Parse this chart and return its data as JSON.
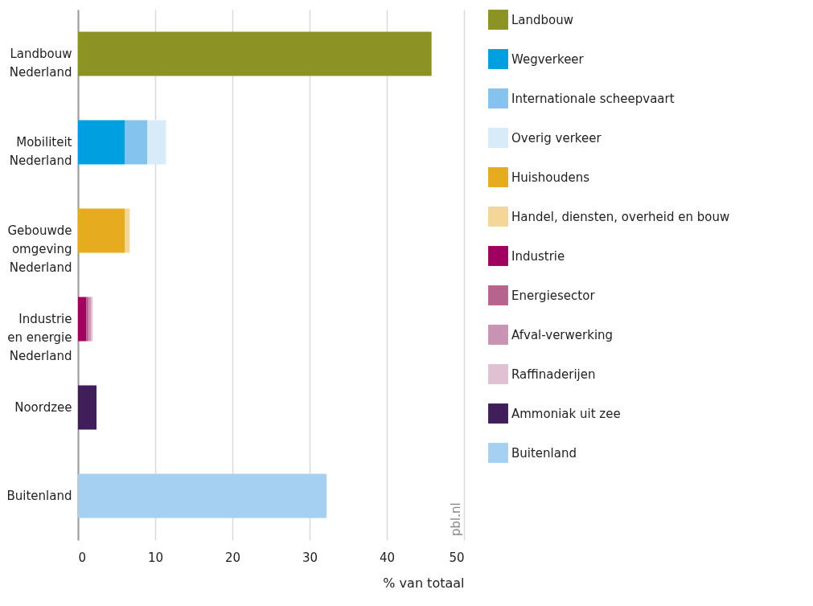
{
  "chart_data": {
    "type": "bar",
    "orientation": "horizontal",
    "stacked": true,
    "categories": [
      "Landbouw\nNederland",
      "Mobiliteit\nNederland",
      "Gebouwde\nomgeving\nNederland",
      "Industrie\nen energie\nNederland",
      "Noordzee",
      "Buitenland"
    ],
    "series": [
      {
        "name": "Landbouw",
        "color": "#8c9224",
        "values": [
          45.8,
          null,
          null,
          null,
          null,
          null
        ]
      },
      {
        "name": "Wegverkeer",
        "color": "#009fe0",
        "values": [
          null,
          6.1,
          null,
          null,
          null,
          null
        ]
      },
      {
        "name": "Internationale scheepvaart",
        "color": "#84c3ee",
        "values": [
          null,
          2.9,
          null,
          null,
          null,
          null
        ]
      },
      {
        "name": "Overig verkeer",
        "color": "#d7ebf8",
        "values": [
          null,
          2.4,
          null,
          null,
          null,
          null
        ]
      },
      {
        "name": "Huishoudens",
        "color": "#e6ab1e",
        "values": [
          null,
          null,
          6.1,
          null,
          null,
          null
        ]
      },
      {
        "name": "Handel, diensten, overheid en bouw",
        "color": "#f3d698",
        "values": [
          null,
          null,
          0.6,
          null,
          null,
          null
        ]
      },
      {
        "name": "Industrie",
        "color": "#a0005f",
        "values": [
          null,
          null,
          null,
          1.1,
          null,
          null
        ]
      },
      {
        "name": "Energiesector",
        "color": "#b6648e",
        "values": [
          null,
          null,
          null,
          0.3,
          null,
          null
        ]
      },
      {
        "name": "Afval-verwerking",
        "color": "#c993b4",
        "values": [
          null,
          null,
          null,
          0.3,
          null,
          null
        ]
      },
      {
        "name": "Raffinaderijen",
        "color": "#e0c0d3",
        "values": [
          null,
          null,
          null,
          0.2,
          null,
          null
        ]
      },
      {
        "name": "Ammoniak uit zee",
        "color": "#3f1e5a",
        "values": [
          null,
          null,
          null,
          null,
          2.4,
          null
        ]
      },
      {
        "name": "Buitenland",
        "color": "#a6d0f1",
        "values": [
          null,
          null,
          null,
          null,
          null,
          32.2
        ]
      }
    ],
    "xlim": [
      0,
      50
    ],
    "xticks": [
      0,
      10,
      20,
      30,
      40,
      50
    ],
    "xlabel": "% van totaal",
    "grid": "x",
    "legend": "right",
    "annotations": [
      "pbl.nl"
    ]
  }
}
